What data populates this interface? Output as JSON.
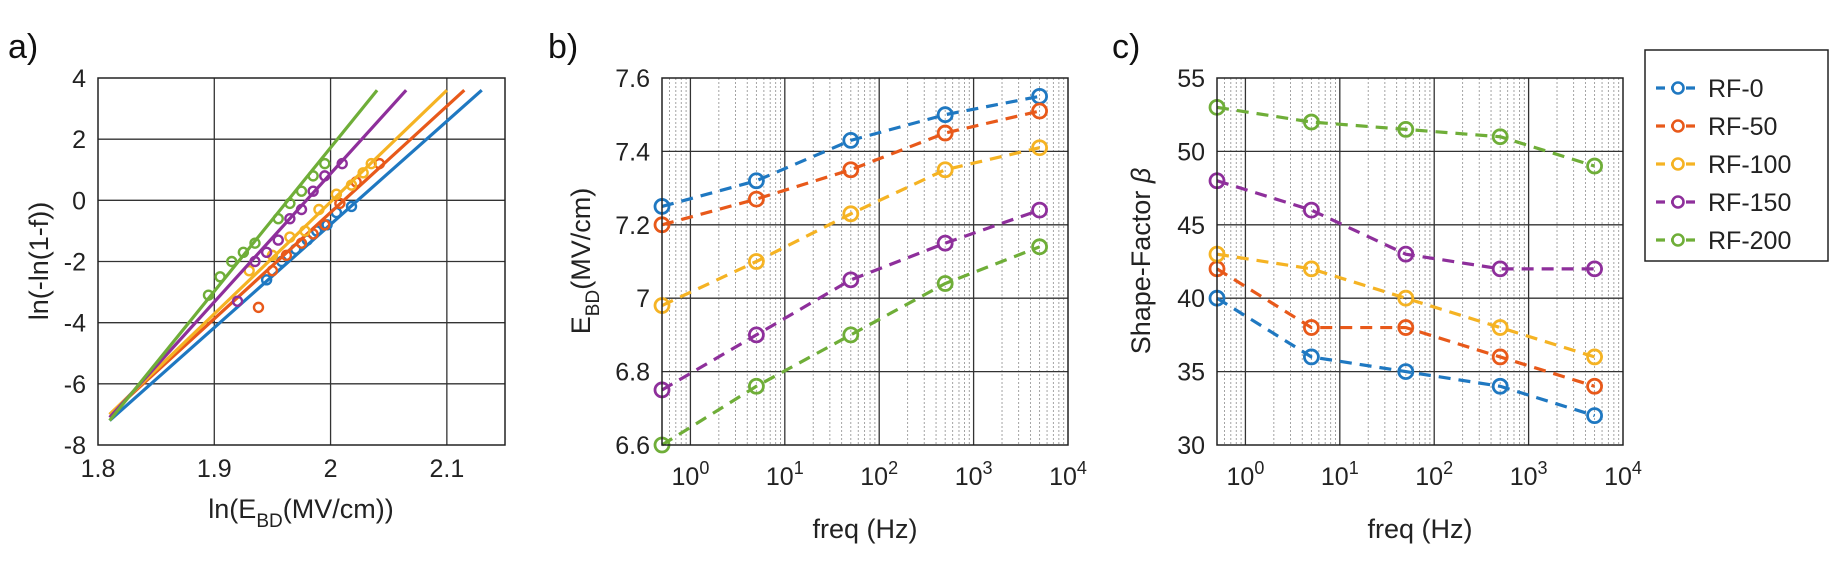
{
  "colors": {
    "RF-0": "#1f78c1",
    "RF-50": "#e8591a",
    "RF-100": "#f5b323",
    "RF-150": "#8e2f9b",
    "RF-200": "#6fae38"
  },
  "legend": {
    "entries": [
      "RF-0",
      "RF-50",
      "RF-100",
      "RF-150",
      "RF-200"
    ]
  },
  "chart_data": [
    {
      "id": "a",
      "panel_label": "a)",
      "type": "scatter",
      "title": "",
      "xlabel": "ln(E_BD(MV/cm))",
      "xlabel_main": "ln(E",
      "xlabel_sub": "BD",
      "xlabel_tail": "(MV/cm))",
      "ylabel": "ln(-ln(1-f))",
      "xlim": [
        1.8,
        2.15
      ],
      "ylim": [
        -8,
        4
      ],
      "xticks": [
        1.8,
        1.9,
        2.0,
        2.1
      ],
      "xtick_labels": [
        "1.8",
        "1.9",
        "2",
        "2.1"
      ],
      "yticks": [
        -8,
        -6,
        -4,
        -2,
        0,
        2,
        4
      ],
      "ytick_labels": [
        "-8",
        "-6",
        "-4",
        "-2",
        "0",
        "2",
        "4"
      ],
      "grid": true,
      "series": [
        {
          "name": "RF-0",
          "fit_line": {
            "x": [
              1.81,
              2.13
            ],
            "y": [
              -7.2,
              3.6
            ]
          },
          "points": [
            [
              1.945,
              -2.6
            ],
            [
              1.958,
              -2.0
            ],
            [
              1.97,
              -1.6
            ],
            [
              1.98,
              -1.3
            ],
            [
              1.988,
              -1.0
            ],
            [
              1.997,
              -0.8
            ],
            [
              2.005,
              -0.4
            ],
            [
              2.018,
              -0.2
            ]
          ]
        },
        {
          "name": "RF-50",
          "fit_line": {
            "x": [
              1.81,
              2.115
            ],
            "y": [
              -7.0,
              3.6
            ]
          },
          "points": [
            [
              1.938,
              -3.5
            ],
            [
              1.95,
              -2.3
            ],
            [
              1.962,
              -1.8
            ],
            [
              1.975,
              -1.4
            ],
            [
              1.985,
              -1.1
            ],
            [
              1.995,
              -0.8
            ],
            [
              2.008,
              -0.1
            ],
            [
              2.022,
              0.6
            ],
            [
              2.042,
              1.2
            ]
          ]
        },
        {
          "name": "RF-100",
          "fit_line": {
            "x": [
              1.81,
              2.1
            ],
            "y": [
              -7.0,
              3.6
            ]
          },
          "points": [
            [
              1.93,
              -2.3
            ],
            [
              1.95,
              -1.8
            ],
            [
              1.965,
              -1.2
            ],
            [
              1.978,
              -1.0
            ],
            [
              1.99,
              -0.3
            ],
            [
              2.005,
              0.2
            ],
            [
              2.018,
              0.5
            ],
            [
              2.028,
              0.9
            ],
            [
              2.035,
              1.2
            ]
          ]
        },
        {
          "name": "RF-150",
          "fit_line": {
            "x": [
              1.81,
              2.065
            ],
            "y": [
              -7.1,
              3.6
            ]
          },
          "points": [
            [
              1.92,
              -3.3
            ],
            [
              1.935,
              -2.0
            ],
            [
              1.945,
              -1.7
            ],
            [
              1.955,
              -1.3
            ],
            [
              1.965,
              -0.6
            ],
            [
              1.975,
              -0.3
            ],
            [
              1.985,
              0.3
            ],
            [
              1.995,
              0.8
            ],
            [
              2.01,
              1.2
            ]
          ]
        },
        {
          "name": "RF-200",
          "fit_line": {
            "x": [
              1.81,
              2.04
            ],
            "y": [
              -7.2,
              3.6
            ]
          },
          "points": [
            [
              1.895,
              -3.1
            ],
            [
              1.905,
              -2.5
            ],
            [
              1.915,
              -2.0
            ],
            [
              1.925,
              -1.7
            ],
            [
              1.935,
              -1.4
            ],
            [
              1.955,
              -0.6
            ],
            [
              1.965,
              -0.1
            ],
            [
              1.975,
              0.3
            ],
            [
              1.985,
              0.8
            ],
            [
              1.995,
              1.2
            ]
          ]
        }
      ]
    },
    {
      "id": "b",
      "panel_label": "b)",
      "type": "line",
      "title": "",
      "xscale": "log",
      "xlabel": "freq (Hz)",
      "ylabel": "E_BD(MV/cm)",
      "ylabel_main": "E",
      "ylabel_sub": "BD",
      "ylabel_tail": "(MV/cm)",
      "xlim": [
        0.5,
        10000
      ],
      "ylim": [
        6.6,
        7.6
      ],
      "xtick_exponents": [
        "0",
        "1",
        "2",
        "3",
        "4"
      ],
      "xtick_base": "10",
      "yticks": [
        6.6,
        6.8,
        7.0,
        7.2,
        7.4,
        7.6
      ],
      "ytick_labels": [
        "6.6",
        "6.8",
        "7",
        "7.2",
        "7.4",
        "7.6"
      ],
      "grid": true,
      "line_style": "dashed",
      "x": [
        0.5,
        5,
        50,
        500,
        5000
      ],
      "series": [
        {
          "name": "RF-0",
          "values": [
            7.25,
            7.32,
            7.43,
            7.5,
            7.55
          ]
        },
        {
          "name": "RF-50",
          "values": [
            7.2,
            7.27,
            7.35,
            7.45,
            7.51
          ]
        },
        {
          "name": "RF-100",
          "values": [
            6.98,
            7.1,
            7.23,
            7.35,
            7.41
          ]
        },
        {
          "name": "RF-150",
          "values": [
            6.75,
            6.9,
            7.05,
            7.15,
            7.24
          ]
        },
        {
          "name": "RF-200",
          "values": [
            6.6,
            6.76,
            6.9,
            7.04,
            7.14
          ]
        }
      ]
    },
    {
      "id": "c",
      "panel_label": "c)",
      "type": "line",
      "title": "",
      "xscale": "log",
      "xlabel": "freq (Hz)",
      "ylabel": "Shape-Factor β",
      "ylabel_main": "Shape-Factor ",
      "ylabel_symbol": "β",
      "xlim": [
        0.5,
        10000
      ],
      "ylim": [
        30,
        55
      ],
      "xtick_exponents": [
        "0",
        "1",
        "2",
        "3",
        "4"
      ],
      "xtick_base": "10",
      "yticks": [
        30,
        35,
        40,
        45,
        50,
        55
      ],
      "ytick_labels": [
        "30",
        "35",
        "40",
        "45",
        "50",
        "55"
      ],
      "grid": true,
      "line_style": "dashed",
      "x": [
        0.5,
        5,
        50,
        500,
        5000
      ],
      "series": [
        {
          "name": "RF-0",
          "values": [
            40,
            36,
            35,
            34,
            32
          ]
        },
        {
          "name": "RF-50",
          "values": [
            42,
            38,
            38,
            36,
            34
          ]
        },
        {
          "name": "RF-100",
          "values": [
            43,
            42,
            40,
            38,
            36
          ]
        },
        {
          "name": "RF-150",
          "values": [
            48,
            46,
            43,
            42,
            42
          ]
        },
        {
          "name": "RF-200",
          "values": [
            53,
            52,
            51.5,
            51,
            49
          ]
        }
      ]
    }
  ]
}
